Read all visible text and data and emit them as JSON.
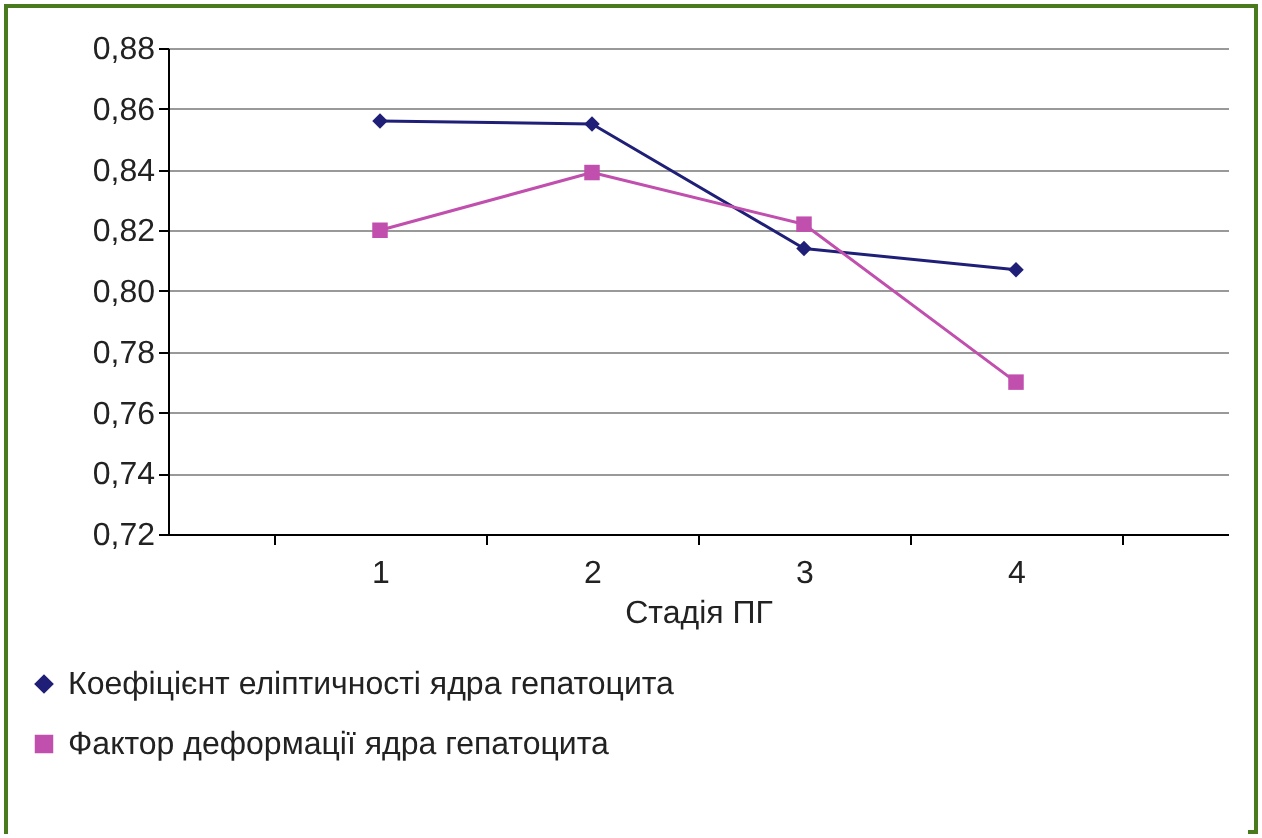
{
  "chart_data": {
    "type": "line",
    "xlabel": "Стадія ПГ",
    "categories": [
      "1",
      "2",
      "3",
      "4"
    ],
    "series": [
      {
        "name": "Коефіцієнт еліптичності ядра гепатоцита",
        "color": "#1f1f78",
        "marker": "diamond",
        "values": [
          0.856,
          0.855,
          0.814,
          0.807
        ]
      },
      {
        "name": "Фактор деформації ядра гепатоцита",
        "color": "#c04fae",
        "marker": "square",
        "values": [
          0.82,
          0.839,
          0.822,
          0.77
        ]
      }
    ],
    "ylim": [
      0.72,
      0.88
    ],
    "yticks": [
      {
        "value": 0.72,
        "label": "0,72"
      },
      {
        "value": 0.74,
        "label": "0,74"
      },
      {
        "value": 0.76,
        "label": "0,76"
      },
      {
        "value": 0.78,
        "label": "0,78"
      },
      {
        "value": 0.8,
        "label": "0,80"
      },
      {
        "value": 0.82,
        "label": "0,82"
      },
      {
        "value": 0.84,
        "label": "0,84"
      },
      {
        "value": 0.86,
        "label": "0,86"
      },
      {
        "value": 0.88,
        "label": "0,88"
      }
    ],
    "grid": "y",
    "legend": "bottom left",
    "line_style": "solid"
  }
}
